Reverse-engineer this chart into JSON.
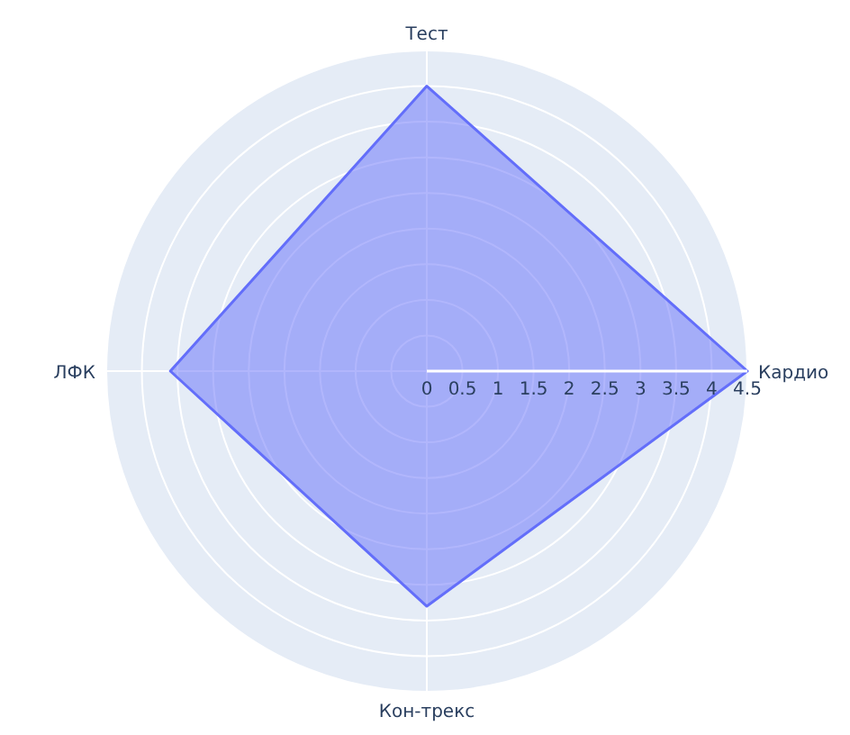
{
  "chart_data": {
    "type": "radar",
    "categories": [
      "Тест",
      "Кардио",
      "Кон-трекс",
      "ЛФК"
    ],
    "series": [
      {
        "color": "#636efa",
        "values": [
          4,
          4.5,
          3.3,
          3.6
        ]
      }
    ],
    "ylim": [
      0,
      4.5
    ],
    "yticks": [
      0,
      0.5,
      1,
      1.5,
      2,
      2.5,
      3,
      3.5,
      4,
      4.5
    ],
    "grid": true
  }
}
